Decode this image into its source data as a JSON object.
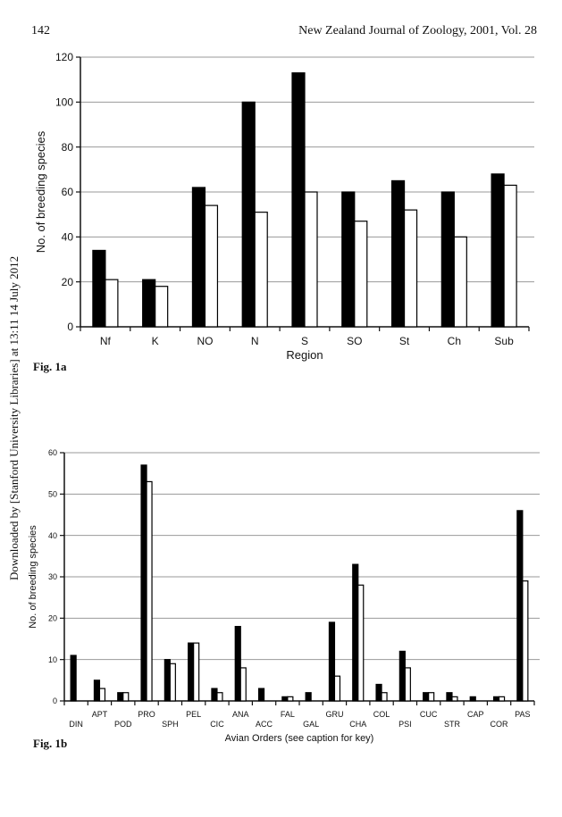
{
  "header": {
    "page_number": "142",
    "journal": "New Zealand Journal of Zoology, 2001, Vol. 28"
  },
  "side_note": "Downloaded by [Stanford University Libraries] at 13:11 14 July 2012",
  "figures": [
    {
      "label": "Fig. 1a"
    },
    {
      "label": "Fig. 1b"
    }
  ],
  "chart_data": [
    {
      "type": "bar",
      "title": "",
      "xlabel": "Region",
      "ylabel": "No. of breeding species",
      "ylim": [
        0,
        120
      ],
      "yticks": [
        0,
        20,
        40,
        60,
        80,
        100,
        120
      ],
      "grid": true,
      "categories": [
        "Nf",
        "K",
        "NO",
        "N",
        "S",
        "SO",
        "St",
        "Ch",
        "Sub"
      ],
      "series": [
        {
          "values": [
            34,
            21,
            62,
            100,
            113,
            60,
            65,
            60,
            68
          ],
          "color": "#000000"
        },
        {
          "values": [
            21,
            18,
            54,
            51,
            60,
            47,
            52,
            40,
            63
          ],
          "color": "#ffffff"
        }
      ]
    },
    {
      "type": "bar",
      "title": "",
      "xlabel": "Avian Orders (see caption for key)",
      "ylabel": "No. of breeding species",
      "ylim": [
        0,
        60
      ],
      "yticks": [
        0,
        10,
        20,
        30,
        40,
        50,
        60
      ],
      "grid": true,
      "categories": [
        "DIN",
        "APT",
        "POD",
        "PRO",
        "SPH",
        "PEL",
        "CIC",
        "ANA",
        "ACC",
        "FAL",
        "GAL",
        "GRU",
        "CHA",
        "COL",
        "PSI",
        "CUC",
        "STR",
        "CAP",
        "COR",
        "PAS"
      ],
      "series": [
        {
          "values": [
            11,
            5,
            2,
            57,
            10,
            14,
            3,
            18,
            3,
            1,
            2,
            19,
            33,
            4,
            12,
            2,
            2,
            1,
            1,
            46
          ],
          "color": "#000000"
        },
        {
          "values": [
            0,
            3,
            2,
            53,
            9,
            14,
            2,
            8,
            0,
            1,
            0,
            6,
            28,
            2,
            8,
            2,
            1,
            0,
            1,
            29
          ],
          "color": "#ffffff"
        }
      ]
    }
  ]
}
